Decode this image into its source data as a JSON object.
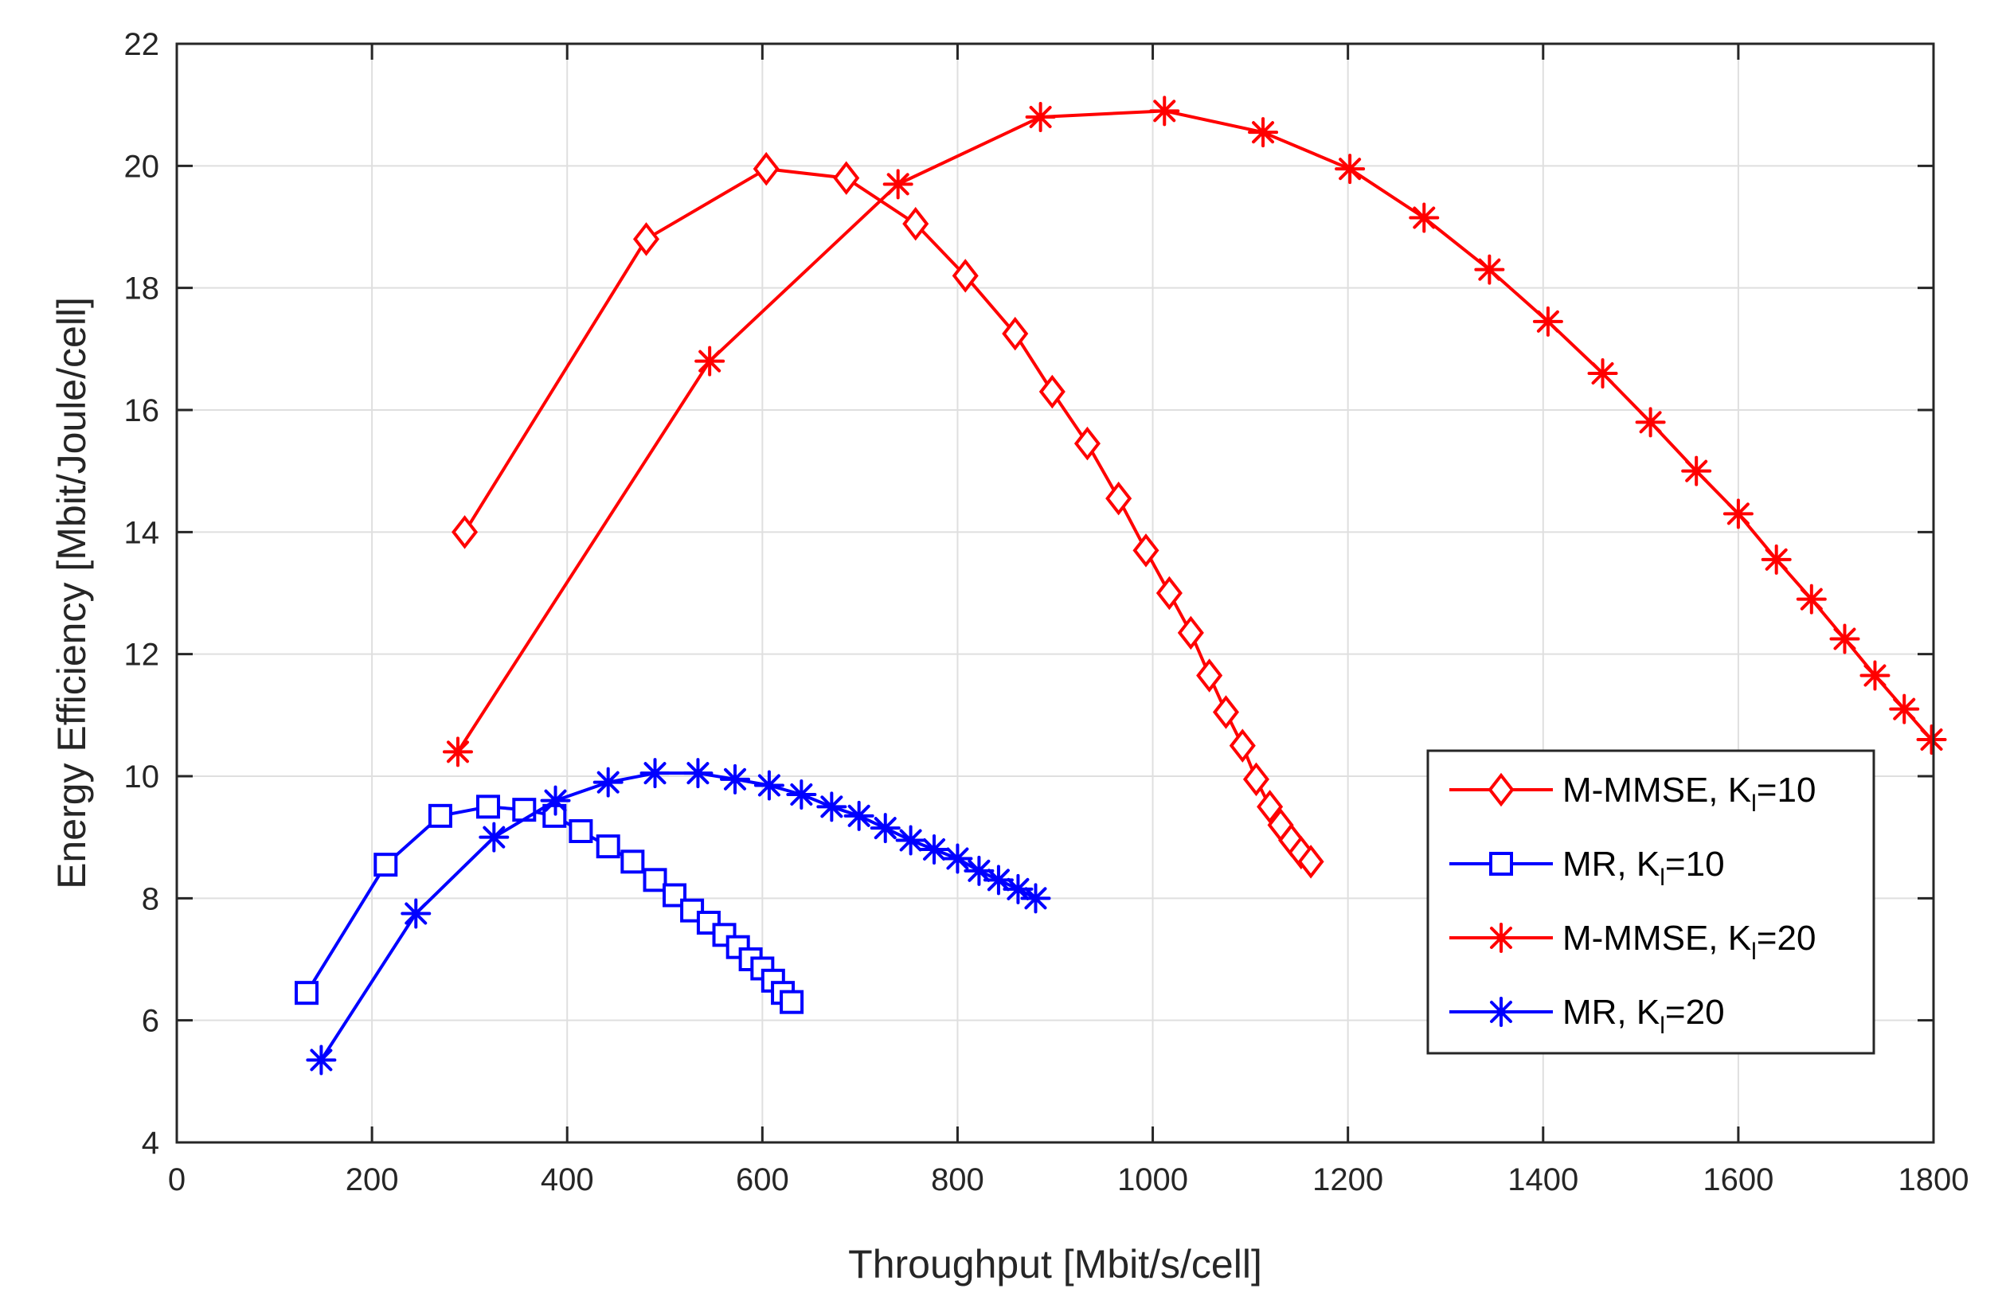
{
  "chart_data": {
    "type": "line",
    "title": "",
    "xlabel": "Throughput [Mbit/s/cell]",
    "ylabel": "Energy Efficiency [Mbit/Joule/cell]",
    "xlim": [
      0,
      1800
    ],
    "ylim": [
      4,
      22
    ],
    "xticks": [
      0,
      200,
      400,
      600,
      800,
      1000,
      1200,
      1400,
      1600,
      1800
    ],
    "yticks": [
      4,
      6,
      8,
      10,
      12,
      14,
      16,
      18,
      20,
      22
    ],
    "xtick_labels": [
      "0",
      "200",
      "400",
      "600",
      "800",
      "1000",
      "1200",
      "1400",
      "1600",
      "1800"
    ],
    "ytick_labels": [
      "4",
      "6",
      "8",
      "10",
      "12",
      "14",
      "16",
      "18",
      "20",
      "22"
    ],
    "grid": true,
    "legend_position": "bottom-right",
    "series": [
      {
        "name": "M-MMSE, K_l=10",
        "legend_main": "M-MMSE, K",
        "legend_sub": "l",
        "legend_tail": "=10",
        "color": "#ff0000",
        "marker": "diamond",
        "x": [
          295,
          481,
          604,
          686,
          757,
          808,
          859,
          897,
          933,
          965,
          993,
          1017,
          1039,
          1058,
          1075,
          1092,
          1106,
          1120,
          1131,
          1142,
          1152,
          1162
        ],
        "y": [
          14.0,
          18.8,
          19.95,
          19.8,
          19.05,
          18.2,
          17.25,
          16.3,
          15.45,
          14.55,
          13.7,
          13.0,
          12.35,
          11.65,
          11.05,
          10.5,
          9.95,
          9.5,
          9.2,
          8.95,
          8.75,
          8.6
        ]
      },
      {
        "name": "MR, K_l=10",
        "legend_main": "MR, K",
        "legend_sub": "l",
        "legend_tail": "=10",
        "color": "#0000ff",
        "marker": "square",
        "x": [
          133,
          214,
          270,
          319,
          356,
          387,
          414,
          442,
          467,
          490,
          510,
          528,
          545,
          561,
          575,
          588,
          600,
          611,
          621,
          630
        ],
        "y": [
          6.45,
          8.55,
          9.35,
          9.5,
          9.45,
          9.35,
          9.1,
          8.85,
          8.6,
          8.3,
          8.05,
          7.8,
          7.6,
          7.4,
          7.2,
          7.0,
          6.85,
          6.65,
          6.45,
          6.3
        ]
      },
      {
        "name": "M-MMSE, K_l=20",
        "legend_main": "M-MMSE, K",
        "legend_sub": "l",
        "legend_tail": "=20",
        "color": "#ff0000",
        "marker": "asterisk",
        "x": [
          288,
          546,
          739,
          885,
          1012,
          1113,
          1202,
          1278,
          1345,
          1405,
          1461,
          1510,
          1557,
          1600,
          1639,
          1675,
          1709,
          1740,
          1770,
          1798
        ],
        "y": [
          10.4,
          16.8,
          19.7,
          20.8,
          20.9,
          20.55,
          19.95,
          19.15,
          18.3,
          17.45,
          16.6,
          15.8,
          15.0,
          14.3,
          13.55,
          12.9,
          12.25,
          11.65,
          11.1,
          10.6
        ]
      },
      {
        "name": "MR, K_l=20",
        "legend_main": "MR, K",
        "legend_sub": "l",
        "legend_tail": "=20",
        "color": "#0000ff",
        "marker": "asterisk",
        "x": [
          148,
          245,
          325,
          388,
          442,
          490,
          534,
          572,
          607,
          640,
          671,
          699,
          726,
          752,
          776,
          800,
          822,
          842,
          862,
          880
        ],
        "y": [
          5.35,
          7.75,
          9.0,
          9.6,
          9.9,
          10.05,
          10.05,
          9.95,
          9.85,
          9.7,
          9.5,
          9.35,
          9.15,
          8.95,
          8.8,
          8.65,
          8.45,
          8.3,
          8.15,
          8.0
        ]
      }
    ]
  }
}
